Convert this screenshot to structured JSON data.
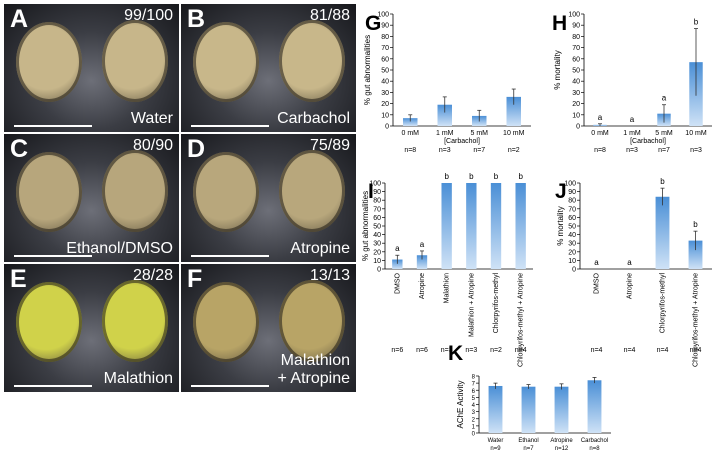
{
  "photos": [
    {
      "letter": "A",
      "count": "99/100",
      "condition": "Water"
    },
    {
      "letter": "B",
      "count": "81/88",
      "condition": "Carbachol"
    },
    {
      "letter": "C",
      "count": "80/90",
      "condition": "Ethanol/DMSO"
    },
    {
      "letter": "D",
      "count": "75/89",
      "condition": "Atropine"
    },
    {
      "letter": "E",
      "count": "28/28",
      "condition": "Malathion"
    },
    {
      "letter": "F",
      "count": "13/13",
      "condition": "Malathion\n+ Atropine"
    }
  ],
  "chart_data": [
    {
      "panel": "G",
      "type": "bar",
      "ylabel": "% gut abnormalities",
      "ylim": [
        0,
        100
      ],
      "yticks": [
        0,
        10,
        20,
        30,
        40,
        50,
        60,
        70,
        80,
        90,
        100
      ],
      "categories": [
        "0 mM",
        "1 mM",
        "5 mM",
        "10 mM"
      ],
      "xlabel": "[Carbachol]",
      "values": [
        7,
        19,
        9,
        26
      ],
      "errors": [
        3,
        7,
        5,
        7
      ],
      "sig": [],
      "n": [
        "n=8",
        "n=3",
        "n=7",
        "n=2"
      ]
    },
    {
      "panel": "H",
      "type": "bar",
      "ylabel": "% mortality",
      "ylim": [
        0,
        100
      ],
      "yticks": [
        0,
        10,
        20,
        30,
        40,
        50,
        60,
        70,
        80,
        90,
        100
      ],
      "categories": [
        "0 mM",
        "1 mM",
        "5 mM",
        "10 mM"
      ],
      "xlabel": "[Carbachol]",
      "values": [
        1,
        0,
        11,
        57
      ],
      "errors": [
        1,
        0,
        8,
        30
      ],
      "sig": [
        "a",
        "a",
        "a",
        "b"
      ],
      "n": [
        "n=8",
        "n=3",
        "n=7",
        "n=3"
      ]
    },
    {
      "panel": "I",
      "type": "bar",
      "ylabel": "% gut abnormalities",
      "ylim": [
        0,
        100
      ],
      "yticks": [
        0,
        10,
        20,
        30,
        40,
        50,
        60,
        70,
        80,
        90,
        100
      ],
      "categories": [
        "DMSO",
        "Atropine",
        "Malathion",
        "Malathion + Atropine",
        "Chlorpyrifos-methyl",
        "Chlorpyrifos-methyl + Atropine"
      ],
      "xlabel": "",
      "values": [
        11,
        16,
        100,
        100,
        100,
        100
      ],
      "errors": [
        5,
        5,
        0,
        0,
        0,
        0
      ],
      "sig": [
        "a",
        "a",
        "b",
        "b",
        "b",
        "b"
      ],
      "n": [
        "n=6",
        "n=6",
        "n=3",
        "n=3",
        "n=2",
        "n=4"
      ]
    },
    {
      "panel": "J",
      "type": "bar",
      "ylabel": "% mortality",
      "ylim": [
        0,
        100
      ],
      "yticks": [
        0,
        10,
        20,
        30,
        40,
        50,
        60,
        70,
        80,
        90,
        100
      ],
      "categories": [
        "DMSO",
        "Atropine",
        "Chlorpyrifos-methyl",
        "Chlorpyrifos-methyl + Atropine"
      ],
      "xlabel": "",
      "values": [
        0,
        0,
        84,
        33
      ],
      "errors": [
        0,
        0,
        10,
        11
      ],
      "sig": [
        "a",
        "a",
        "b",
        "b"
      ],
      "n": [
        "n=4",
        "n=4",
        "n=4",
        "n=4"
      ]
    },
    {
      "panel": "K",
      "type": "bar",
      "ylabel": "AChE Activity",
      "ylim": [
        0,
        8
      ],
      "yticks": [
        0,
        1,
        2,
        3,
        4,
        5,
        6,
        7,
        8
      ],
      "categories": [
        "Water",
        "Ethanol",
        "Atropine",
        "Carbachol"
      ],
      "xlabel": "",
      "values": [
        6.6,
        6.5,
        6.5,
        7.4
      ],
      "errors": [
        0.4,
        0.3,
        0.4,
        0.4
      ],
      "sig": [],
      "n": [
        "n=9",
        "n=7",
        "n=12",
        "n=8"
      ]
    }
  ],
  "colors": {
    "bar_top": "#4a8fd6",
    "bar_bottom": "#cfe2f6",
    "error": "#333333"
  }
}
